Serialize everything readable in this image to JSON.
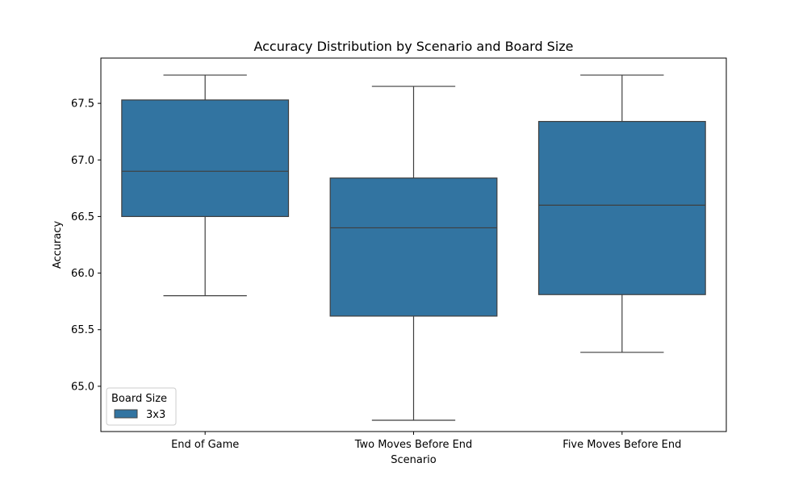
{
  "chart_data": {
    "type": "box",
    "title": "Accuracy Distribution by Scenario and Board Size",
    "xlabel": "Scenario",
    "ylabel": "Accuracy",
    "ylim": [
      64.6,
      67.9
    ],
    "yticks": [
      "65.0",
      "65.5",
      "66.0",
      "66.5",
      "67.0",
      "67.5"
    ],
    "categories": [
      "End of Game",
      "Two Moves Before End",
      "Five Moves Before End"
    ],
    "series": [
      {
        "name": "3x3",
        "color": "#3274a1",
        "boxes": [
          {
            "whisker_low": 65.8,
            "q1": 66.5,
            "median": 66.9,
            "q3": 67.53,
            "whisker_high": 67.75
          },
          {
            "whisker_low": 64.7,
            "q1": 65.62,
            "median": 66.4,
            "q3": 66.84,
            "whisker_high": 67.65
          },
          {
            "whisker_low": 65.3,
            "q1": 65.81,
            "median": 66.6,
            "q3": 67.34,
            "whisker_high": 67.75
          }
        ]
      }
    ],
    "legend": {
      "title": "Board Size",
      "entries": [
        "3x3"
      ],
      "position": "lower-left"
    },
    "grid": false
  }
}
